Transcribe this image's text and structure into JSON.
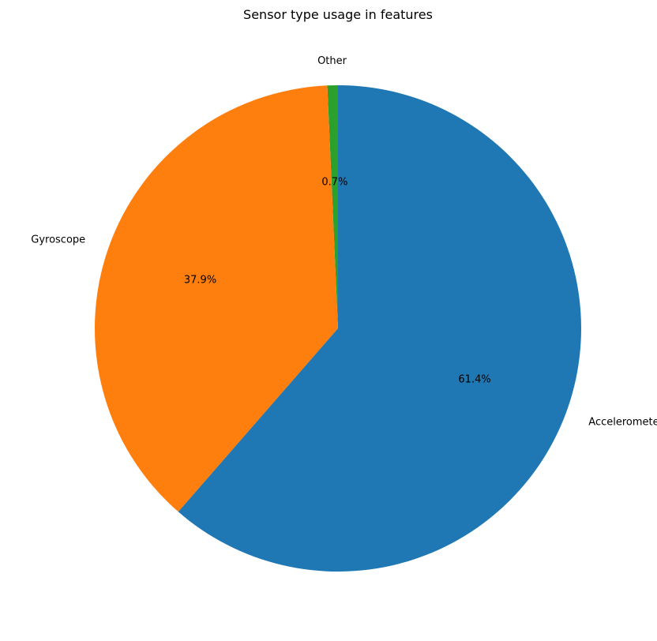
{
  "chart_data": {
    "type": "pie",
    "title": "Sensor type usage in features",
    "slices": [
      {
        "label": "Other",
        "value": 0.7,
        "pct_label": "0.7%",
        "color": "#2ca02c"
      },
      {
        "label": "Gyroscope",
        "value": 37.9,
        "pct_label": "37.9%",
        "color": "#ff7f0e"
      },
      {
        "label": "Accelerometer",
        "value": 61.4,
        "pct_label": "61.4%",
        "color": "#1f77b4"
      }
    ],
    "start_angle_deg": 90,
    "direction": "counterclockwise"
  }
}
